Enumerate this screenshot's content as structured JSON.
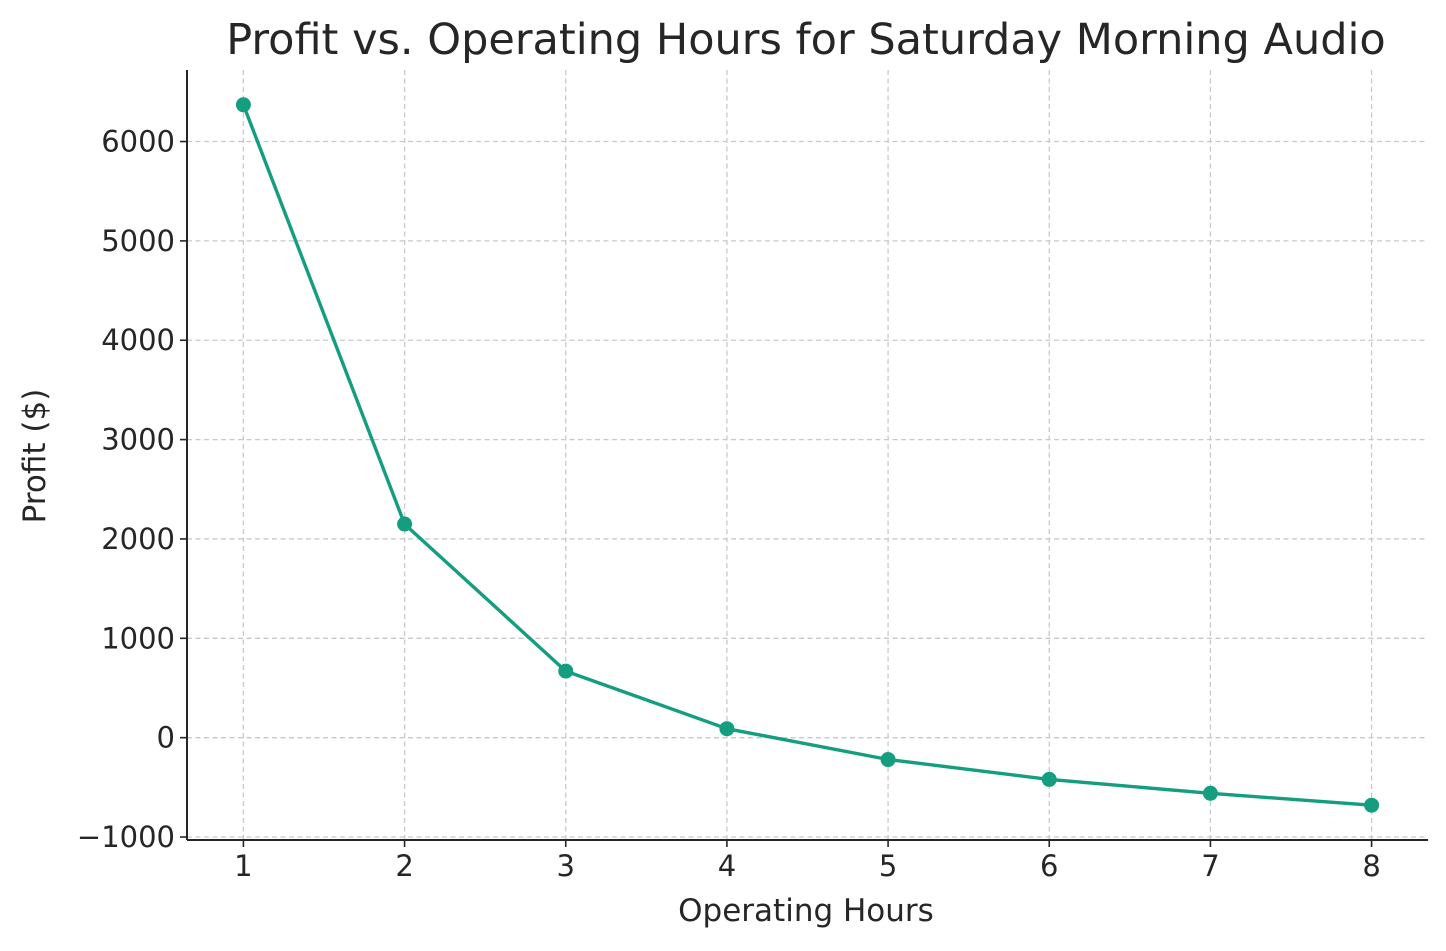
{
  "chart_data": {
    "type": "line",
    "title": "Profit vs. Operating Hours for Saturday Morning Audio",
    "xlabel": "Operating Hours",
    "ylabel": "Profit ($)",
    "x": [
      1,
      2,
      3,
      4,
      5,
      6,
      7,
      8
    ],
    "series": [
      {
        "values": [
          6370,
          2150,
          670,
          90,
          -220,
          -420,
          -560,
          -680
        ]
      }
    ],
    "xlim": [
      0.65,
      8.35
    ],
    "ylim": [
      -1030,
      6720
    ],
    "xticks": [
      1,
      2,
      3,
      4,
      5,
      6,
      7,
      8
    ],
    "xtick_labels": [
      "1",
      "2",
      "3",
      "4",
      "5",
      "6",
      "7",
      "8"
    ],
    "yticks": [
      -1000,
      0,
      1000,
      2000,
      3000,
      4000,
      5000,
      6000
    ],
    "ytick_labels": [
      "−1000",
      "0",
      "1000",
      "2000",
      "3000",
      "4000",
      "5000",
      "6000"
    ],
    "grid": true,
    "grid_style": "dashed",
    "markers": true,
    "colors": {
      "line": "#149e7f",
      "grid": "#c9c9c9",
      "axis": "#262626",
      "text": "#262626"
    }
  }
}
